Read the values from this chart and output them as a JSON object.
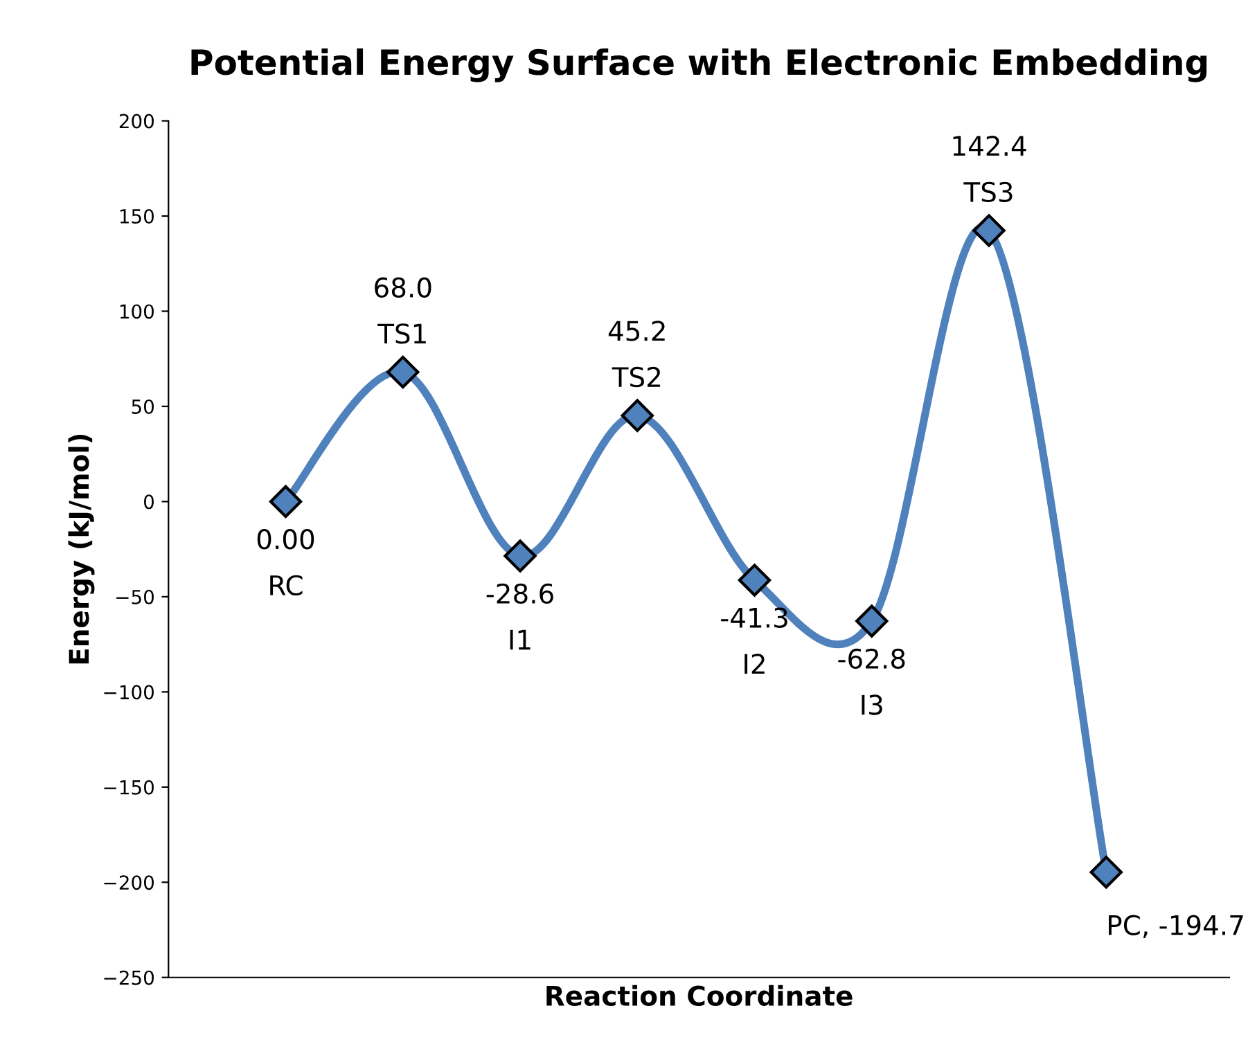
{
  "chart_data": {
    "type": "line",
    "title": "Potential Energy Surface with Electronic Embedding",
    "xlabel": "Reaction Coordinate",
    "ylabel": "Energy (kJ/mol)",
    "categories": [
      "RC",
      "TS1",
      "I1",
      "TS2",
      "I2",
      "I3",
      "TS3",
      null
    ],
    "series": [
      {
        "color": "#4f81bd",
        "values": [
          0.0,
          68.0,
          -28.6,
          45.2,
          -41.3,
          -62.8,
          142.4,
          -194.7
        ]
      }
    ],
    "value_labels": [
      "0.00",
      "68.0",
      "-28.6",
      "45.2",
      "-41.3",
      "-62.8",
      "142.4",
      "PC, -194.7"
    ],
    "ylim": [
      -250,
      200
    ],
    "yticks": [
      -250,
      -200,
      -150,
      -100,
      -50,
      0,
      50,
      100,
      150,
      200
    ],
    "marker": "diamond",
    "line_style": "solid",
    "grid": false,
    "tick_labels": "y"
  }
}
